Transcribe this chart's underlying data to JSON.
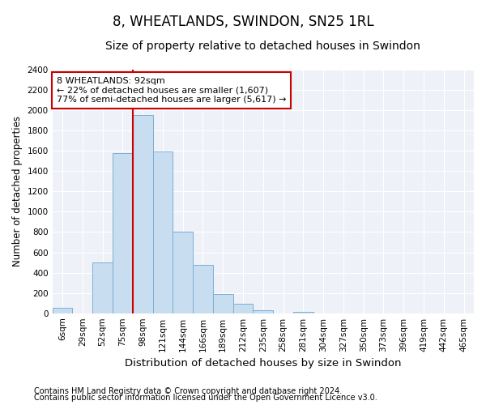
{
  "title": "8, WHEATLANDS, SWINDON, SN25 1RL",
  "subtitle": "Size of property relative to detached houses in Swindon",
  "xlabel": "Distribution of detached houses by size in Swindon",
  "ylabel": "Number of detached properties",
  "categories": [
    "6sqm",
    "29sqm",
    "52sqm",
    "75sqm",
    "98sqm",
    "121sqm",
    "144sqm",
    "166sqm",
    "189sqm",
    "212sqm",
    "235sqm",
    "258sqm",
    "281sqm",
    "304sqm",
    "327sqm",
    "350sqm",
    "373sqm",
    "396sqm",
    "419sqm",
    "442sqm",
    "465sqm"
  ],
  "values": [
    50,
    0,
    500,
    1580,
    1950,
    1590,
    800,
    480,
    190,
    90,
    30,
    0,
    10,
    0,
    0,
    0,
    0,
    0,
    0,
    0,
    0
  ],
  "bar_color": "#c9ddf0",
  "bar_edge_color": "#7bafd4",
  "bar_linewidth": 0.7,
  "property_line_index": 4,
  "property_label": "8 WHEATLANDS: 92sqm",
  "annotation_line1": "← 22% of detached houses are smaller (1,607)",
  "annotation_line2": "77% of semi-detached houses are larger (5,617) →",
  "annotation_box_color": "#ffffff",
  "annotation_box_edge_color": "#cc0000",
  "property_line_color": "#cc0000",
  "ylim": [
    0,
    2400
  ],
  "yticks": [
    0,
    200,
    400,
    600,
    800,
    1000,
    1200,
    1400,
    1600,
    1800,
    2000,
    2200,
    2400
  ],
  "background_color": "#eef2f8",
  "grid_color": "#ffffff",
  "footer_line1": "Contains HM Land Registry data © Crown copyright and database right 2024.",
  "footer_line2": "Contains public sector information licensed under the Open Government Licence v3.0.",
  "title_fontsize": 12,
  "subtitle_fontsize": 10,
  "xlabel_fontsize": 9.5,
  "ylabel_fontsize": 8.5,
  "tick_fontsize": 7.5,
  "footer_fontsize": 7,
  "annot_fontsize": 8
}
